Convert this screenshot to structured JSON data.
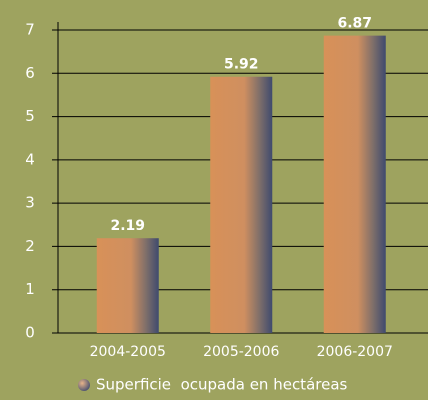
{
  "chart_data": {
    "type": "bar",
    "categories": [
      "2004-2005",
      "2005-2006",
      "2006-2007"
    ],
    "series": [
      {
        "name": "Superficie  ocupada en hectáreas",
        "color": "#d89158",
        "values": [
          2.19,
          5.92,
          6.87
        ]
      }
    ],
    "ylim": [
      0,
      7
    ],
    "yticks": [
      0,
      1,
      2,
      3,
      4,
      5,
      6,
      7
    ],
    "grid": true,
    "legend": "bottom"
  }
}
